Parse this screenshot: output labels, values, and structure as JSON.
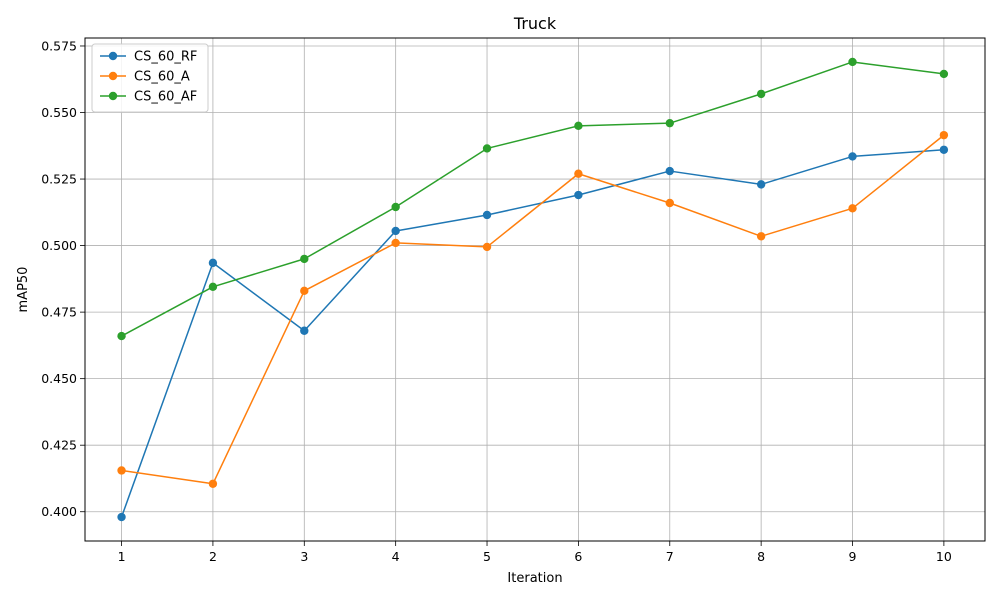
{
  "chart_data": {
    "type": "line",
    "title": "Truck",
    "xlabel": "Iteration",
    "ylabel": "mAP50",
    "x": [
      1,
      2,
      3,
      4,
      5,
      6,
      7,
      8,
      9,
      10
    ],
    "xlim": [
      0.6,
      10.45
    ],
    "ylim": [
      0.389,
      0.578
    ],
    "xticks": [
      1,
      2,
      3,
      4,
      5,
      6,
      7,
      8,
      9,
      10
    ],
    "xtick_labels": [
      "1",
      "2",
      "3",
      "4",
      "5",
      "6",
      "7",
      "8",
      "9",
      "10"
    ],
    "yticks": [
      0.4,
      0.425,
      0.45,
      0.475,
      0.5,
      0.525,
      0.55,
      0.575
    ],
    "ytick_labels": [
      "0.400",
      "0.425",
      "0.450",
      "0.475",
      "0.500",
      "0.525",
      "0.550",
      "0.575"
    ],
    "grid": true,
    "legend_position": "top-left",
    "marker": "circle",
    "series": [
      {
        "name": "CS_60_RF",
        "color": "#1f77b4",
        "values": [
          0.398,
          0.4935,
          0.468,
          0.5055,
          0.5115,
          0.519,
          0.528,
          0.523,
          0.5335,
          0.536
        ]
      },
      {
        "name": "CS_60_A",
        "color": "#ff7f0e",
        "values": [
          0.4155,
          0.4105,
          0.483,
          0.501,
          0.4995,
          0.527,
          0.516,
          0.5035,
          0.514,
          0.5415
        ]
      },
      {
        "name": "CS_60_AF",
        "color": "#2ca02c",
        "values": [
          0.466,
          0.4845,
          0.495,
          0.5145,
          0.5365,
          0.545,
          0.546,
          0.557,
          0.569,
          0.5645
        ]
      }
    ]
  }
}
